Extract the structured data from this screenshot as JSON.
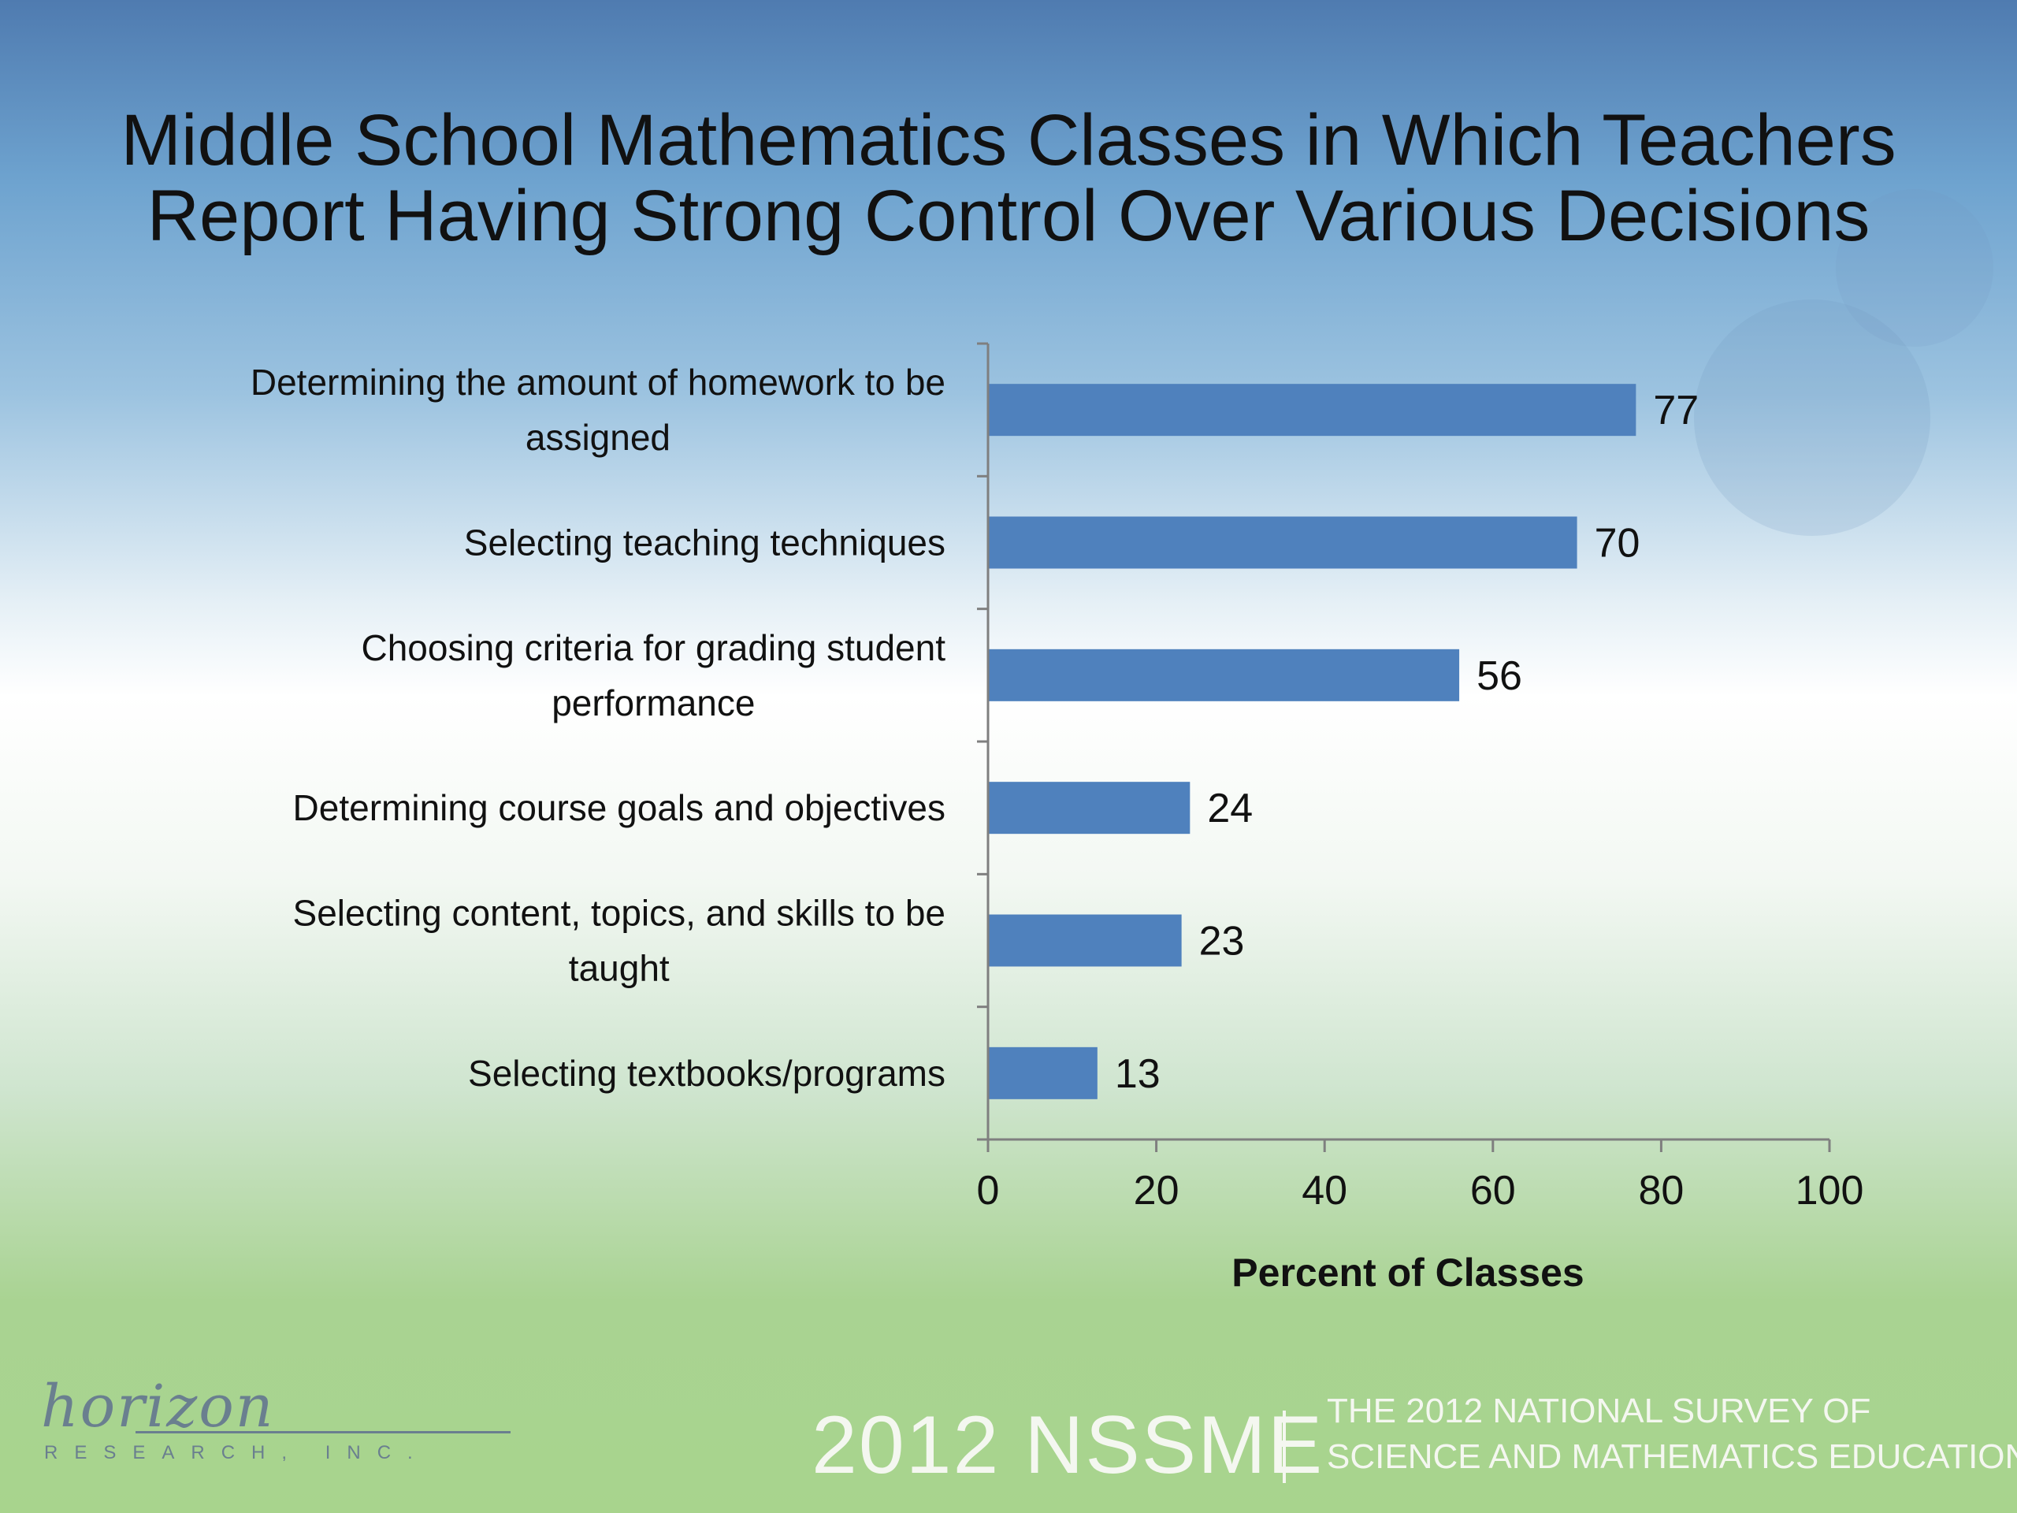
{
  "slide": {
    "title_lines": [
      "Middle School Mathematics Classes in Which Teachers",
      "Report Having Strong Control Over Various Decisions"
    ]
  },
  "chart_data": {
    "type": "bar",
    "orientation": "horizontal",
    "title": "Middle School Mathematics Classes in Which Teachers Report Having Strong Control Over Various Decisions",
    "categories": [
      [
        "Determining the amount of homework to be",
        "assigned"
      ],
      [
        "Selecting teaching techniques"
      ],
      [
        "Choosing criteria for grading student",
        "performance"
      ],
      [
        "Determining course goals and objectives"
      ],
      [
        "Selecting content, topics, and skills to be",
        "taught"
      ],
      [
        "Selecting textbooks/programs"
      ]
    ],
    "values": [
      77,
      70,
      56,
      24,
      23,
      13
    ],
    "data_labels": [
      "77",
      "70",
      "56",
      "24",
      "23",
      "13"
    ],
    "xlabel": "Percent of Classes",
    "ylabel": "",
    "xlim": [
      0,
      100
    ],
    "xticks": [
      0,
      20,
      40,
      60,
      80,
      100
    ],
    "xtick_labels": [
      "0",
      "20",
      "40",
      "60",
      "80",
      "100"
    ],
    "grid": false,
    "bar_color": "#4f81bd"
  },
  "footer": {
    "logo_script": "horizon",
    "logo_sub": "RESEARCH, INC.",
    "event": "2012 NSSME",
    "survey_lines": [
      "THE 2012 NATIONAL SURVEY OF",
      "SCIENCE AND MATHEMATICS EDUCATION"
    ]
  }
}
